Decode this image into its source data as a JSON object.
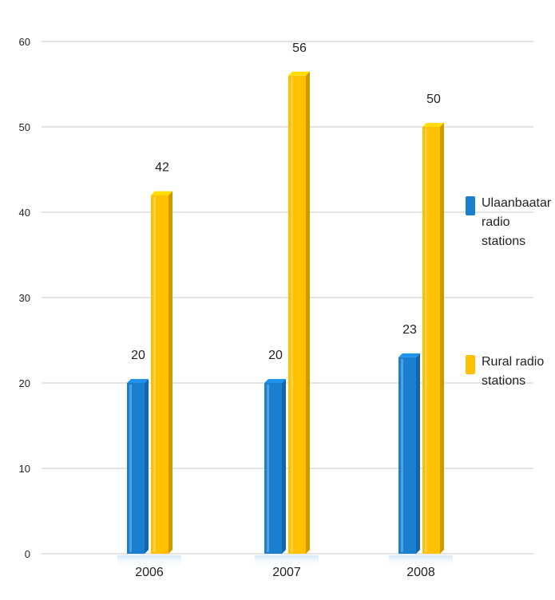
{
  "chart_data": {
    "type": "bar",
    "categories": [
      "2006",
      "2007",
      "2008"
    ],
    "series": [
      {
        "name": "Ulaanbaatar radio stations",
        "values": [
          20,
          20,
          23
        ],
        "color": "#1a7fd0"
      },
      {
        "name": "Rural radio stations",
        "values": [
          42,
          56,
          50
        ],
        "color": "#ffc000"
      }
    ],
    "ylim": [
      0,
      60
    ],
    "yticks": [
      0,
      10,
      20,
      30,
      40,
      50,
      60
    ],
    "grid": true,
    "legend_position": "right",
    "title": "",
    "xlabel": "",
    "ylabel": ""
  }
}
